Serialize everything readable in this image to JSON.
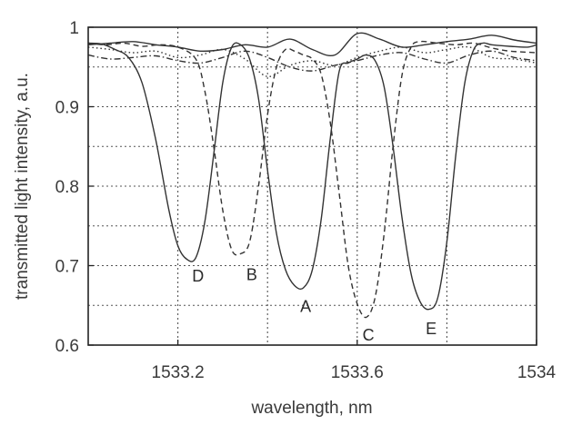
{
  "chart_data": {
    "type": "line",
    "xlabel": "wavelength, nm",
    "ylabel": "transmitted light intensity, a.u.",
    "xlim": [
      1533.0,
      1534.0
    ],
    "ylim": [
      0.6,
      1.0
    ],
    "x_ticks": [
      1533.2,
      1533.6,
      1534
    ],
    "x_tick_labels": [
      "1533.2",
      "1533.6",
      "1534"
    ],
    "y_ticks": [
      0.6,
      0.7,
      0.8,
      0.9,
      1.0
    ],
    "y_tick_labels": [
      "0.6",
      "0.7",
      "0.8",
      "0.9",
      "1"
    ],
    "x_grid": [
      1533.2,
      1533.4,
      1533.6,
      1533.8
    ],
    "y_grid": [
      0.65,
      0.7,
      0.75,
      0.8,
      0.85,
      0.9,
      0.95
    ],
    "grid": true,
    "series": [
      {
        "style": "solid",
        "x": [
          1533.0,
          1533.03,
          1533.06,
          1533.09,
          1533.12,
          1533.15,
          1533.18,
          1533.2,
          1533.22,
          1533.24,
          1533.26,
          1533.28,
          1533.3,
          1533.32,
          1533.34,
          1533.36,
          1533.38,
          1533.4,
          1533.42,
          1533.44,
          1533.46,
          1533.48,
          1533.5,
          1533.52,
          1533.54,
          1533.56,
          1533.58,
          1533.6,
          1533.62,
          1533.64,
          1533.66,
          1533.68,
          1533.7,
          1533.72,
          1533.74,
          1533.76,
          1533.78,
          1533.8,
          1533.82,
          1533.84,
          1533.86,
          1533.88,
          1533.9,
          1533.94,
          1533.98,
          1534.0
        ],
        "y": [
          0.98,
          0.979,
          0.972,
          0.962,
          0.93,
          0.86,
          0.77,
          0.725,
          0.708,
          0.71,
          0.755,
          0.84,
          0.93,
          0.975,
          0.978,
          0.96,
          0.91,
          0.82,
          0.74,
          0.695,
          0.675,
          0.672,
          0.695,
          0.76,
          0.86,
          0.945,
          0.955,
          0.96,
          0.965,
          0.958,
          0.925,
          0.85,
          0.76,
          0.69,
          0.655,
          0.645,
          0.66,
          0.73,
          0.84,
          0.93,
          0.972,
          0.98,
          0.978,
          0.976,
          0.975,
          0.978
        ]
      },
      {
        "style": "dashed",
        "x": [
          1533.0,
          1533.04,
          1533.08,
          1533.12,
          1533.16,
          1533.2,
          1533.24,
          1533.26,
          1533.28,
          1533.3,
          1533.32,
          1533.34,
          1533.36,
          1533.38,
          1533.4,
          1533.42,
          1533.44,
          1533.46,
          1533.48,
          1533.5,
          1533.52,
          1533.54,
          1533.56,
          1533.58,
          1533.6,
          1533.62,
          1533.64,
          1533.66,
          1533.68,
          1533.7,
          1533.72,
          1533.74,
          1533.78,
          1533.82,
          1533.86,
          1533.9,
          1533.94,
          1534.0
        ],
        "y": [
          0.98,
          0.978,
          0.98,
          0.976,
          0.978,
          0.975,
          0.96,
          0.92,
          0.85,
          0.77,
          0.72,
          0.715,
          0.73,
          0.8,
          0.89,
          0.95,
          0.972,
          0.97,
          0.965,
          0.96,
          0.94,
          0.88,
          0.79,
          0.7,
          0.652,
          0.635,
          0.66,
          0.74,
          0.85,
          0.94,
          0.975,
          0.982,
          0.98,
          0.978,
          0.98,
          0.974,
          0.97,
          0.968
        ]
      },
      {
        "style": "dotted",
        "x": [
          1533.0,
          1533.05,
          1533.1,
          1533.15,
          1533.2,
          1533.25,
          1533.3,
          1533.35,
          1533.4,
          1533.45,
          1533.5,
          1533.55,
          1533.6,
          1533.65,
          1533.7,
          1533.75,
          1533.8,
          1533.85,
          1533.9,
          1533.95,
          1534.0
        ],
        "y": [
          0.975,
          0.972,
          0.968,
          0.97,
          0.962,
          0.965,
          0.972,
          0.96,
          0.938,
          0.952,
          0.958,
          0.952,
          0.962,
          0.97,
          0.975,
          0.968,
          0.972,
          0.975,
          0.962,
          0.96,
          0.955
        ]
      },
      {
        "style": "dash-dot",
        "x": [
          1533.0,
          1533.05,
          1533.1,
          1533.15,
          1533.2,
          1533.25,
          1533.3,
          1533.35,
          1533.4,
          1533.45,
          1533.5,
          1533.55,
          1533.6,
          1533.65,
          1533.7,
          1533.75,
          1533.8,
          1533.85,
          1533.9,
          1533.95,
          1534.0
        ],
        "y": [
          0.965,
          0.96,
          0.962,
          0.964,
          0.958,
          0.955,
          0.962,
          0.97,
          0.962,
          0.95,
          0.945,
          0.952,
          0.958,
          0.965,
          0.968,
          0.96,
          0.955,
          0.965,
          0.97,
          0.962,
          0.958
        ]
      },
      {
        "style": "solid-thin",
        "x": [
          1533.0,
          1533.05,
          1533.1,
          1533.15,
          1533.2,
          1533.25,
          1533.3,
          1533.35,
          1533.4,
          1533.45,
          1533.5,
          1533.55,
          1533.6,
          1533.65,
          1533.7,
          1533.75,
          1533.8,
          1533.85,
          1533.9,
          1533.95,
          1534.0
        ],
        "y": [
          0.978,
          0.98,
          0.982,
          0.978,
          0.975,
          0.97,
          0.972,
          0.978,
          0.975,
          0.985,
          0.972,
          0.965,
          0.992,
          0.985,
          0.975,
          0.978,
          0.982,
          0.985,
          0.99,
          0.984,
          0.98
        ]
      }
    ],
    "annotations": [
      {
        "text": "D",
        "x": 1533.245,
        "y": 0.688
      },
      {
        "text": "B",
        "x": 1533.365,
        "y": 0.69
      },
      {
        "text": "A",
        "x": 1533.485,
        "y": 0.65
      },
      {
        "text": "C",
        "x": 1533.625,
        "y": 0.614
      },
      {
        "text": "E",
        "x": 1533.765,
        "y": 0.622
      }
    ]
  }
}
